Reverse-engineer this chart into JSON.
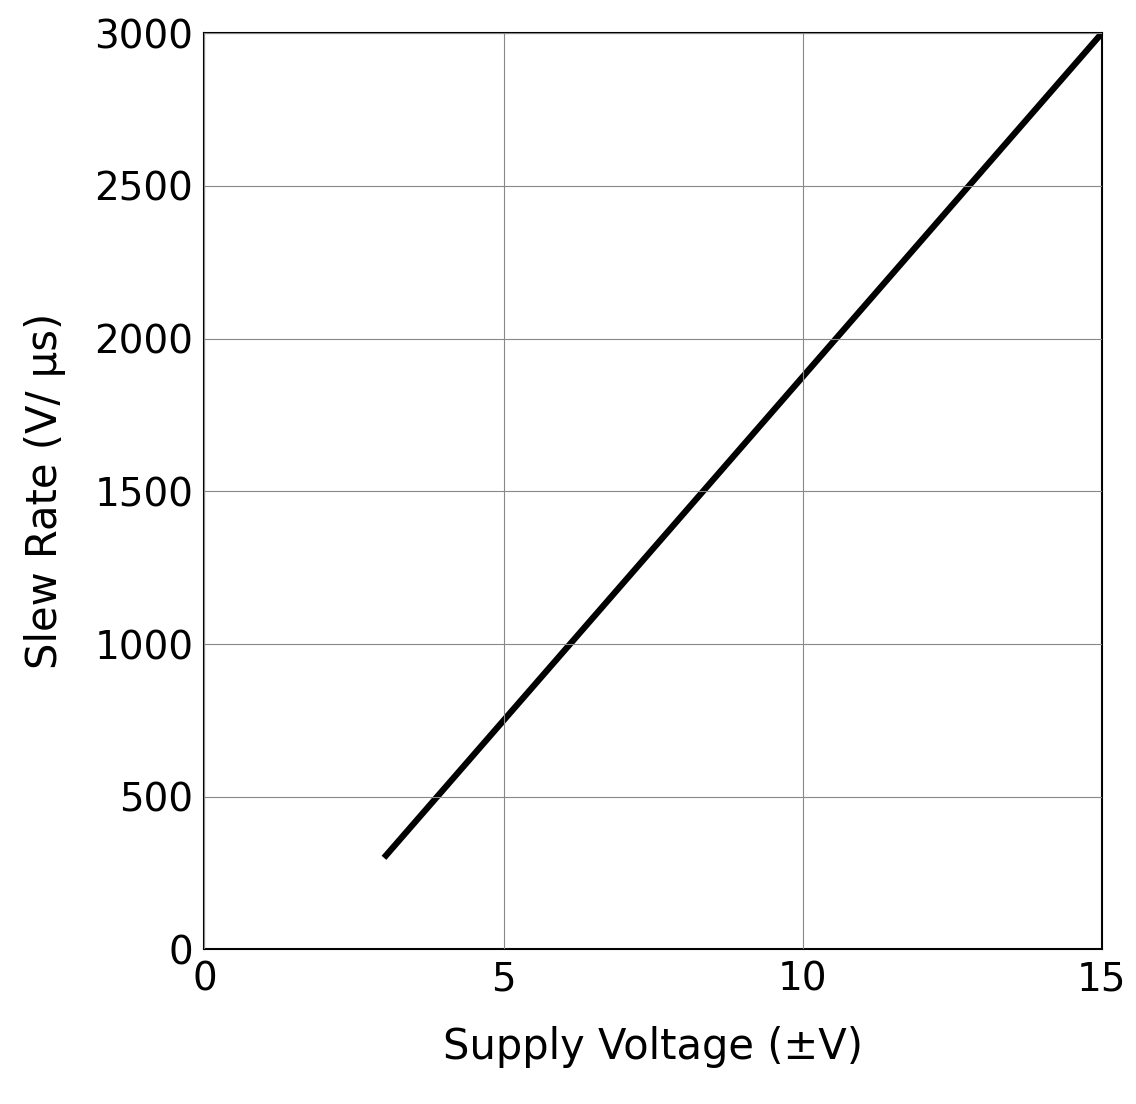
{
  "x_data": [
    3,
    15
  ],
  "y_data": [
    300,
    3000
  ],
  "xlim": [
    0,
    15
  ],
  "ylim": [
    0,
    3000
  ],
  "xticks": [
    0,
    5,
    10,
    15
  ],
  "yticks": [
    0,
    500,
    1000,
    1500,
    2000,
    2500,
    3000
  ],
  "xlabel": "Supply Voltage (±V)",
  "ylabel": "Slew Rate (V/ μs)",
  "line_color": "#000000",
  "line_width": 4.5,
  "background_color": "#ffffff",
  "grid_color": "#888888",
  "grid_linewidth": 0.8,
  "tick_fontsize": 28,
  "label_fontsize": 30
}
